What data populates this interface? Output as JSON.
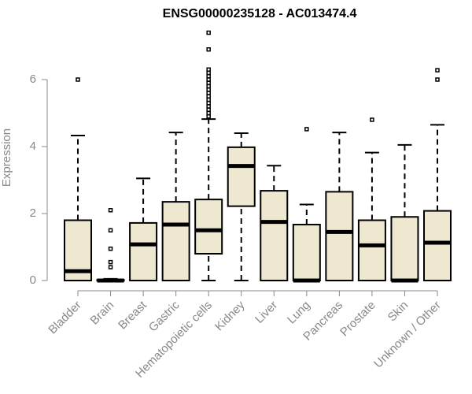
{
  "chart_data": {
    "type": "boxplot",
    "title": "ENSG00000235128 - AC013474.4",
    "ylabel": "Expression",
    "xlabel": "",
    "ylim": [
      0,
      7.5
    ],
    "yticks": [
      0,
      2,
      4,
      6
    ],
    "grid": false,
    "colors": {
      "box_fill": "#efe8d0",
      "box_stroke": "#000000",
      "axis": "#888888"
    },
    "categories": [
      "Bladder",
      "Brain",
      "Breast",
      "Gastric",
      "Hematopoietic cells",
      "Kidney",
      "Liver",
      "Lung",
      "Pancreas",
      "Prostate",
      "Skin",
      "Unknown / Other"
    ],
    "boxes": [
      {
        "category": "Bladder",
        "min": 0,
        "q1": 0,
        "median": 0.28,
        "q3": 1.8,
        "max": 4.33,
        "outliers": [
          6.0
        ]
      },
      {
        "category": "Brain",
        "min": 0,
        "q1": 0,
        "median": 0,
        "q3": 0.02,
        "max": 0.05,
        "outliers": [
          0.4,
          0.55,
          0.95,
          1.5,
          2.1
        ]
      },
      {
        "category": "Breast",
        "min": 0,
        "q1": 0,
        "median": 1.08,
        "q3": 1.72,
        "max": 3.05,
        "outliers": []
      },
      {
        "category": "Gastric",
        "min": 0,
        "q1": 0,
        "median": 1.67,
        "q3": 2.35,
        "max": 4.42,
        "outliers": []
      },
      {
        "category": "Hematopoietic cells",
        "min": 0,
        "q1": 0.8,
        "median": 1.5,
        "q3": 2.42,
        "max": 4.82,
        "outliers": [
          4.9,
          5.0,
          5.1,
          5.2,
          5.3,
          5.4,
          5.5,
          5.6,
          5.7,
          5.8,
          5.9,
          6.0,
          6.1,
          6.2,
          6.3,
          6.9,
          7.4
        ]
      },
      {
        "category": "Kidney",
        "min": 0,
        "q1": 2.22,
        "median": 3.42,
        "q3": 3.98,
        "max": 4.4,
        "outliers": []
      },
      {
        "category": "Liver",
        "min": 0,
        "q1": 0,
        "median": 1.75,
        "q3": 2.68,
        "max": 3.43,
        "outliers": []
      },
      {
        "category": "Lung",
        "min": 0,
        "q1": 0,
        "median": 0,
        "q3": 1.67,
        "max": 2.27,
        "outliers": [
          4.52
        ]
      },
      {
        "category": "Pancreas",
        "min": 0,
        "q1": 0,
        "median": 1.45,
        "q3": 2.65,
        "max": 4.42,
        "outliers": []
      },
      {
        "category": "Prostate",
        "min": 0,
        "q1": 0,
        "median": 1.05,
        "q3": 1.8,
        "max": 3.82,
        "outliers": [
          4.8
        ]
      },
      {
        "category": "Skin",
        "min": 0,
        "q1": 0,
        "median": 0,
        "q3": 1.9,
        "max": 4.05,
        "outliers": []
      },
      {
        "category": "Unknown / Other",
        "min": 0,
        "q1": 0,
        "median": 1.13,
        "q3": 2.08,
        "max": 4.65,
        "outliers": [
          6.0,
          6.28
        ]
      }
    ]
  }
}
